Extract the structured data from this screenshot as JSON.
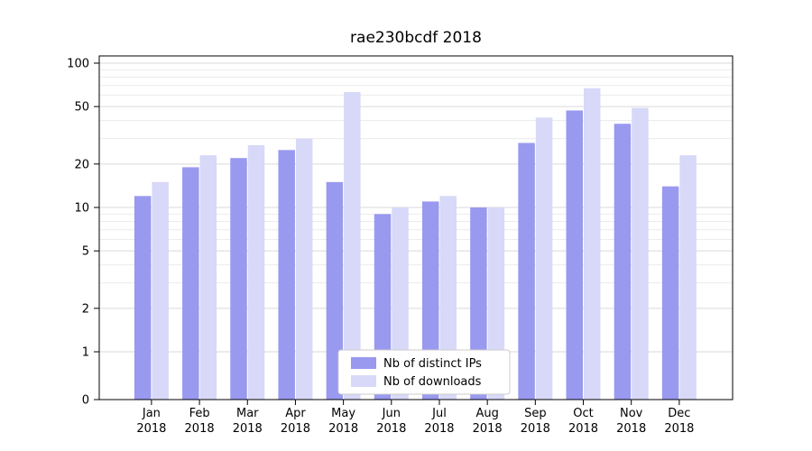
{
  "chart_data": {
    "type": "bar",
    "title": "rae230bcdf 2018",
    "categories": [
      "Jan",
      "Feb",
      "Mar",
      "Apr",
      "May",
      "Jun",
      "Jul",
      "Aug",
      "Sep",
      "Oct",
      "Nov",
      "Dec"
    ],
    "category_year": "2018",
    "series": [
      {
        "name": "Nb of distinct IPs",
        "color": "#9999f0",
        "values": [
          12,
          19,
          22,
          25,
          15,
          9,
          11,
          10,
          28,
          47,
          38,
          14
        ]
      },
      {
        "name": "Nb of downloads",
        "color": "#d8d8f8",
        "values": [
          15,
          23,
          27,
          30,
          63,
          10,
          12,
          10,
          42,
          67,
          49,
          23
        ]
      }
    ],
    "yscale": "symlog",
    "yticks": [
      0,
      1,
      2,
      5,
      10,
      20,
      50,
      100
    ],
    "ylim": [
      0,
      112
    ],
    "grid": true,
    "legend_position": "lower center"
  }
}
